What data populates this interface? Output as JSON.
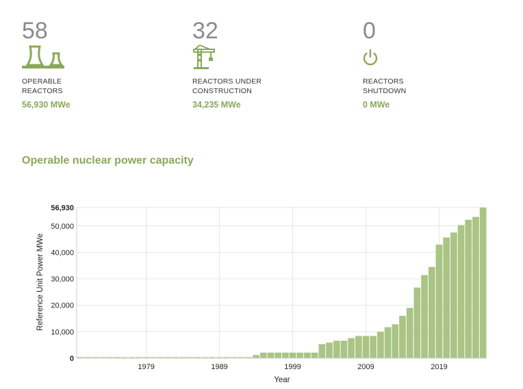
{
  "stats": [
    {
      "value": "58",
      "label_line1": "OPERABLE",
      "label_line2": "REACTORS",
      "mwe": "56,930 MWe",
      "icon": "cooling-towers-icon"
    },
    {
      "value": "32",
      "label_line1": "REACTORS UNDER",
      "label_line2": "CONSTRUCTION",
      "mwe": "34,235 MWe",
      "icon": "construction-crane-icon"
    },
    {
      "value": "0",
      "label_line1": "REACTORS",
      "label_line2": "SHUTDOWN",
      "mwe": "0 MWe",
      "icon": "power-off-icon"
    }
  ],
  "colors": {
    "accent": "#8aa857",
    "bar": "#a9c484",
    "number": "#8a8a8a"
  },
  "section_title": "Operable nuclear power capacity",
  "chart_data": {
    "type": "bar",
    "title": "Operable nuclear power capacity",
    "xlabel": "Year",
    "ylabel": "Reference Unit Power MWe",
    "x": [
      1970,
      1971,
      1972,
      1973,
      1974,
      1975,
      1976,
      1977,
      1978,
      1979,
      1980,
      1981,
      1982,
      1983,
      1984,
      1985,
      1986,
      1987,
      1988,
      1989,
      1990,
      1991,
      1992,
      1993,
      1994,
      1995,
      1996,
      1997,
      1998,
      1999,
      2000,
      2001,
      2002,
      2003,
      2004,
      2005,
      2006,
      2007,
      2008,
      2009,
      2010,
      2011,
      2012,
      2013,
      2014,
      2015,
      2016,
      2017,
      2018,
      2019,
      2020,
      2021,
      2022,
      2023,
      2024,
      2025
    ],
    "values": [
      0,
      0,
      0,
      0,
      0,
      0,
      0,
      0,
      0,
      0,
      0,
      0,
      0,
      0,
      0,
      0,
      0,
      0,
      0,
      0,
      0,
      0,
      0,
      300,
      1200,
      2100,
      2100,
      2100,
      2100,
      2100,
      2100,
      2100,
      2100,
      5300,
      5900,
      6600,
      6600,
      7600,
      8400,
      8400,
      8400,
      10000,
      11700,
      12800,
      16000,
      19000,
      26700,
      31400,
      34500,
      42900,
      45600,
      47500,
      50300,
      52300,
      53400,
      56930
    ],
    "x_ticks": [
      "1979",
      "1989",
      "1999",
      "2009",
      "2019"
    ],
    "y_ticks": [
      "0",
      "10,000",
      "20,000",
      "30,000",
      "40,000",
      "50,000",
      "56,930"
    ],
    "ylim": [
      0,
      56930
    ],
    "grid": true
  }
}
